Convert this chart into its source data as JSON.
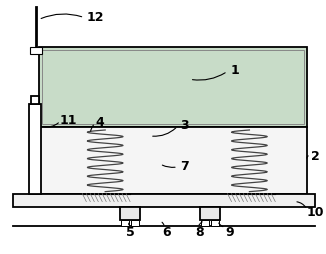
{
  "background_color": "#ffffff",
  "line_color": "#000000",
  "fill_green": "#c8dcc8",
  "fill_light": "#f0f0f0",
  "figsize": [
    3.26,
    2.55
  ],
  "dpi": 100
}
